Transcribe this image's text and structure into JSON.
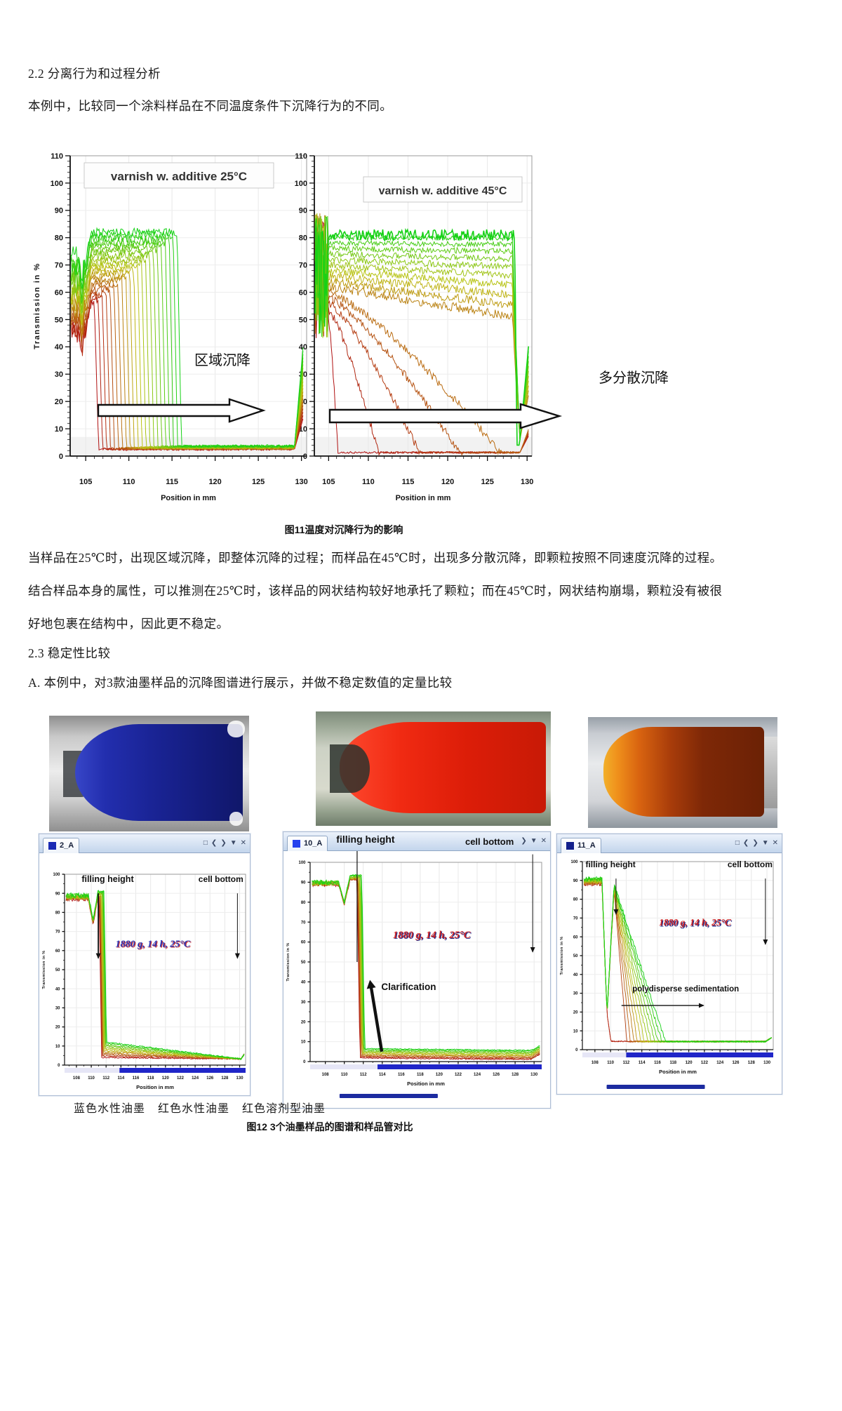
{
  "page": {
    "section_2_2": "2.2 分离行为和过程分析",
    "intro": "本例中，比较同一个涂料样品在不同温度条件下沉降行为的不同。",
    "fig11_caption": "图11温度对沉降行为的影响",
    "para_1": "当样品在25℃时，出现区域沉降，即整体沉降的过程；而样品在45℃时，出现多分散沉降，即颗粒按照不同速度沉降的过程。",
    "para_2": "结合样品本身的属性，可以推测在25℃时，该样品的网状结构较好地承托了颗粒；而在45℃时，网状结构崩塌，颗粒没有被很",
    "para_3": "好地包裹在结构中，因此更不稳定。",
    "section_2_3": "2.3 稳定性比较",
    "para_a": "A. 本例中，对3款油墨样品的沉降图谱进行展示，并做不稳定数值的定量比较",
    "ink_labels": [
      "蓝色水性油墨",
      "红色水性油墨",
      "红色溶剂型油墨"
    ],
    "fig12_caption": "图12 3个油墨样品的图谱和样品管对比"
  },
  "figure11": {
    "left": {
      "title": "varnish w. additive 25°C",
      "annotation": "区域沉降"
    },
    "right": {
      "title": "varnish w. additive 45°C",
      "annotation": "多分散沉降"
    },
    "xlabel": "Position in mm",
    "ylabel": "Transmission in %"
  },
  "figure12": {
    "window_controls": [
      "□",
      "❮",
      "❯",
      "▼",
      "✕"
    ],
    "axis": {
      "xlabel": "Position in mm",
      "ylabel": "Transmission in %"
    },
    "panels": [
      {
        "tab": "2_A",
        "filling_height": "filling height",
        "cell_bottom": "cell bottom",
        "run_info": "1880 g, 14 h, 25°C",
        "run_color": "#2a35b5",
        "run_shadow": "#cc3333",
        "extra": "",
        "tab_square_color": "#1b2bb4",
        "tube_color": "#1a2496"
      },
      {
        "tab": "10_A",
        "filling_height": "filling height",
        "cell_bottom": "cell bottom",
        "run_info": "1880 g, 14 h, 25°C",
        "run_color": "#d02525",
        "run_shadow": "#1b2a8a",
        "extra": "Clarification",
        "tab_square_color": "#2742ee",
        "tube_color": "#e02010"
      },
      {
        "tab": "11_A",
        "filling_height": "filling height",
        "cell_bottom": "cell bottom",
        "run_info": "1880 g, 14 h, 25°C",
        "run_color": "#d02525",
        "run_shadow": "#1b2a8a",
        "extra": "polydisperse sedimentation",
        "tab_square_color": "#14218c",
        "tube_color": "#b84408"
      }
    ],
    "scrollbar_colors": {
      "pale": "#e6e6f6",
      "dark": "#2026c8"
    }
  },
  "chart_data": [
    {
      "id": "fig11_left",
      "type": "line",
      "title": "varnish w. additive 25°C",
      "xlabel": "Position in mm",
      "ylabel": "Transmission in %",
      "xlim": [
        103.2,
        130.6
      ],
      "ylim": [
        0,
        110
      ],
      "xticks": [
        105,
        110,
        115,
        120,
        125,
        130
      ],
      "ytick_step": 10,
      "grid": true,
      "annotation": "区域沉降",
      "series_note": "about 22 transmission-vs-position profiles over time (first=red, last=green); a sharp sedimentation front moves from ~106 mm to ~115.6 mm while the plateau stays at 56-82 %T (zone sedimentation)",
      "gen": {
        "n": 22,
        "front_start": 106.0,
        "front_span": 9.6,
        "plateau_base": 56,
        "plateau_span": 26,
        "start_base": 46,
        "start_span": 26,
        "low": 2.5,
        "tail_end": 129.2,
        "end_rise_base": 15,
        "end_rise_span": 28
      },
      "representative_profiles": {
        "first": [
          [
            103.3,
            48
          ],
          [
            105,
            50
          ],
          [
            105.7,
            58
          ],
          [
            106.0,
            58
          ],
          [
            106.5,
            3
          ],
          [
            129.2,
            3
          ],
          [
            130.2,
            17
          ]
        ],
        "middle": [
          [
            103.3,
            60
          ],
          [
            105,
            62
          ],
          [
            105.7,
            70
          ],
          [
            110.8,
            70
          ],
          [
            111.3,
            3
          ],
          [
            129.2,
            3
          ],
          [
            130.2,
            30
          ]
        ],
        "last": [
          [
            103.3,
            72
          ],
          [
            105,
            74
          ],
          [
            105.7,
            82
          ],
          [
            115.6,
            82
          ],
          [
            116.1,
            3
          ],
          [
            129.2,
            4
          ],
          [
            130.2,
            43
          ]
        ]
      }
    },
    {
      "id": "fig11_right",
      "type": "line",
      "title": "varnish w. additive 45°C",
      "xlabel": "Position in mm",
      "ylabel": "Transmission in %",
      "xlim": [
        103.2,
        130.6
      ],
      "ylim": [
        0,
        110
      ],
      "xticks": [
        105,
        110,
        115,
        120,
        125,
        130
      ],
      "ytick_step": 10,
      "grid": true,
      "annotation": "多分散沉降",
      "series_note": "about 16 profiles; polydisperse settling: early red profiles clarify to ~0 %T at increasing positions (106-127 mm), later profiles sag gradually, last green profile stays ~80 %T across the cell",
      "gen": {
        "n": 16,
        "base": 52,
        "base_span": 30,
        "plunge_n": 5,
        "plunge_start": 106.2,
        "plunge_step": 5.2,
        "sag": 1.05,
        "drop_x": 128.2,
        "dip": 6,
        "end_rise_base": 14,
        "end_rise_span": 30
      },
      "representative_profiles": {
        "first": [
          [
            103.3,
            70
          ],
          [
            105,
            52
          ],
          [
            106.2,
            1.5
          ],
          [
            128,
            1.5
          ],
          [
            129,
            5
          ],
          [
            130.2,
            14
          ]
        ],
        "middle": [
          [
            105,
            67
          ],
          [
            128,
            56
          ],
          [
            129,
            8
          ],
          [
            130.2,
            28
          ]
        ],
        "last": [
          [
            105,
            82
          ],
          [
            128.5,
            80
          ],
          [
            128.8,
            5
          ],
          [
            130.2,
            44
          ]
        ]
      }
    },
    {
      "id": "fig12_p1",
      "type": "line",
      "title": "2_A",
      "xlabel": "Position in mm",
      "ylabel": "Transmission in %",
      "xlim": [
        106.4,
        130.8
      ],
      "ylim": [
        0,
        100
      ],
      "xticks": [
        108,
        110,
        112,
        114,
        116,
        118,
        120,
        122,
        124,
        126,
        128,
        130
      ],
      "ytick_step": 10,
      "grid": true,
      "series_note": "12 tightly bunched profiles: plateau ~88 %T, sharp drop at ~111 mm (filling height), low tail 4-12 %T to cell bottom - stable blue water-based ink",
      "gen": {
        "n": 12,
        "start": 87,
        "dip_x": 109.6,
        "dip": 74,
        "peak_x": 110.9,
        "peak": 88,
        "front_start": 111.05,
        "front_step": 0.06,
        "low_base": 4,
        "low_step": 0.75,
        "tail_min": 3.2,
        "end_rise": 2.5,
        "bar_split": 113.8
      },
      "annotations": [
        "filling height",
        "cell bottom",
        "1880 g, 14 h, 25°C"
      ]
    },
    {
      "id": "fig12_p2",
      "type": "line",
      "title": "10_A",
      "xlabel": "Position in mm",
      "ylabel": "Transmission in %",
      "xlim": [
        106.4,
        130.8
      ],
      "ylim": [
        0,
        100
      ],
      "xticks": [
        108,
        110,
        112,
        114,
        116,
        118,
        120,
        122,
        124,
        126,
        128,
        130
      ],
      "ytick_step": 10,
      "grid": true,
      "series_note": "12 overlapping profiles with clarification at the filling front (~111.4 mm); red water-based ink",
      "gen": {
        "n": 12,
        "start": 89,
        "dip_x": 109.4,
        "dip": 79,
        "peak_x": 110.6,
        "peak": 91,
        "front_start": 111.35,
        "front_step": 0.045,
        "low_base": 2.2,
        "low_step": 0.5,
        "end_rise": 6,
        "bar_split": 113.5
      },
      "annotations": [
        "filling height",
        "cell bottom",
        "1880 g, 14 h, 25°C",
        "Clarification"
      ]
    },
    {
      "id": "fig12_p3",
      "type": "line",
      "title": "11_A",
      "xlabel": "Position in mm",
      "ylabel": "Transmission in %",
      "xlim": [
        106.4,
        130.8
      ],
      "ylim": [
        0,
        100
      ],
      "xticks": [
        108,
        110,
        112,
        114,
        116,
        118,
        120,
        122,
        124,
        126,
        128,
        130
      ],
      "ytick_step": 10,
      "grid": true,
      "series_note": "14 profiles fanning out from ~110.5 mm: fronts advance from 111 to ~117 mm (polydisperse sedimentation); red solvent-based ink",
      "gen": {
        "n": 14,
        "start": 88,
        "notch_x": 108.9,
        "notch": 19,
        "peak_x": 110.45,
        "peak": 84,
        "fan_start": 111.2,
        "fan_span": 5.8,
        "low": 4.4,
        "red_cut": 0.12,
        "end_rise": 4,
        "bar_split": 112.0
      },
      "annotations": [
        "filling height",
        "cell bottom",
        "1880 g, 14 h, 25°C",
        "polydisperse sedimentation"
      ]
    }
  ]
}
